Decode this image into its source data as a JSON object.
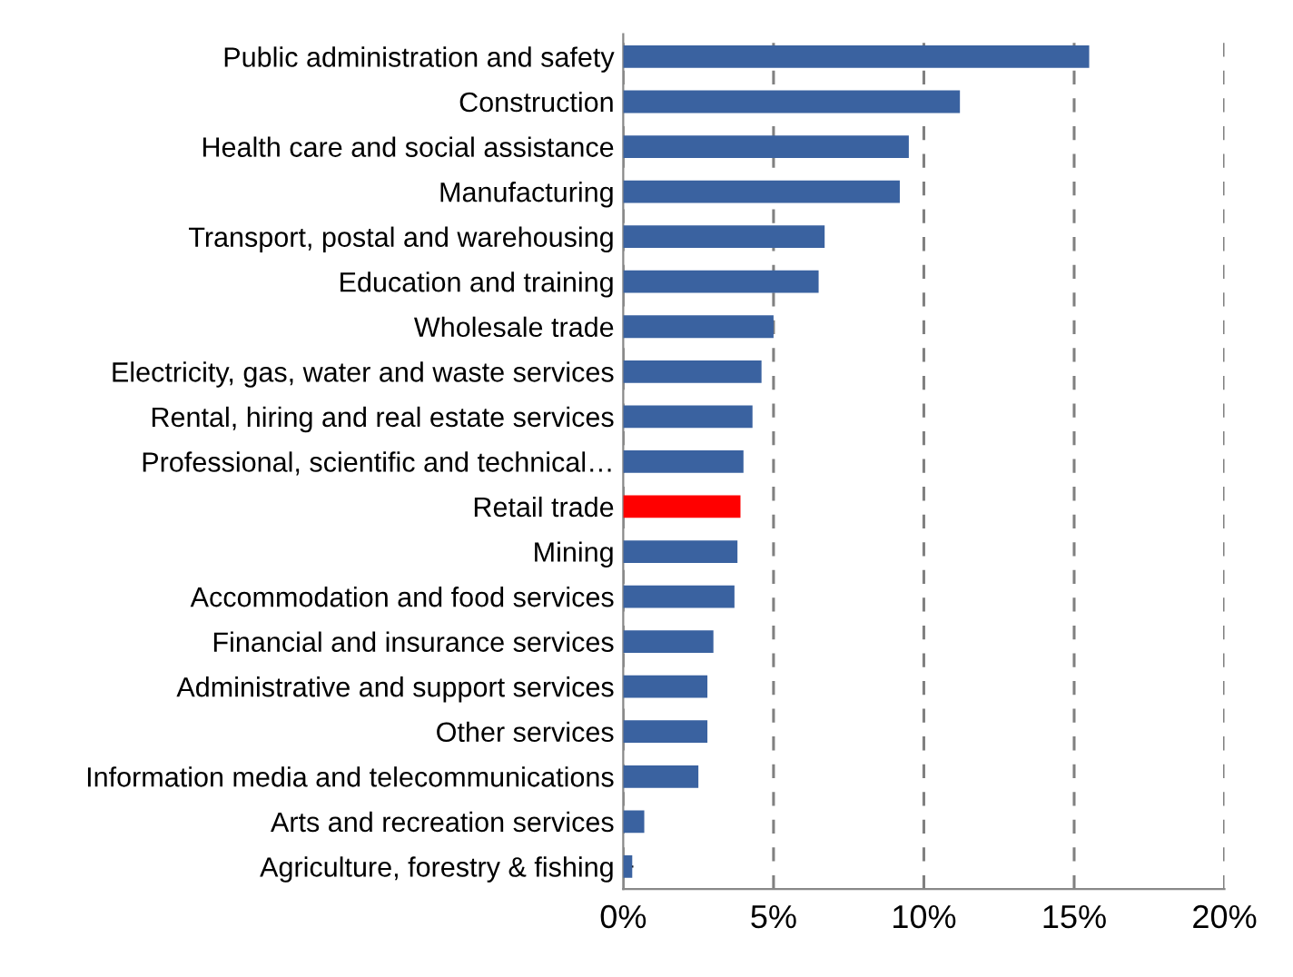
{
  "chart_data": {
    "type": "bar",
    "orientation": "horizontal",
    "categories": [
      "Public administration and safety",
      "Construction",
      "Health care and social assistance",
      "Manufacturing",
      "Transport, postal and warehousing",
      "Education and training",
      "Wholesale trade",
      "Electricity, gas, water and waste services",
      "Rental, hiring and real estate services",
      "Professional, scientific and technical…",
      "Retail trade",
      "Mining",
      "Accommodation and food services",
      "Financial and insurance services",
      "Administrative and support services",
      "Other services",
      "Information media and telecommunications",
      "Arts and recreation services",
      "Agriculture, forestry & fishing"
    ],
    "values": [
      15.5,
      11.2,
      9.5,
      9.2,
      6.7,
      6.5,
      5.0,
      4.6,
      4.3,
      4.0,
      3.9,
      3.8,
      3.7,
      3.0,
      2.8,
      2.8,
      2.5,
      0.7,
      0.3
    ],
    "colors": [
      "#3a62a0",
      "#3a62a0",
      "#3a62a0",
      "#3a62a0",
      "#3a62a0",
      "#3a62a0",
      "#3a62a0",
      "#3a62a0",
      "#3a62a0",
      "#3a62a0",
      "#ff0000",
      "#3a62a0",
      "#3a62a0",
      "#3a62a0",
      "#3a62a0",
      "#3a62a0",
      "#3a62a0",
      "#3a62a0",
      "#3a62a0"
    ],
    "xlim": [
      0,
      20
    ],
    "xticks": [
      {
        "value": 0,
        "label": "0%"
      },
      {
        "value": 5,
        "label": "5%"
      },
      {
        "value": 10,
        "label": "10%"
      },
      {
        "value": 15,
        "label": "15%"
      },
      {
        "value": 20,
        "label": "20%"
      }
    ],
    "grid": "x",
    "line_style": "dashed"
  }
}
